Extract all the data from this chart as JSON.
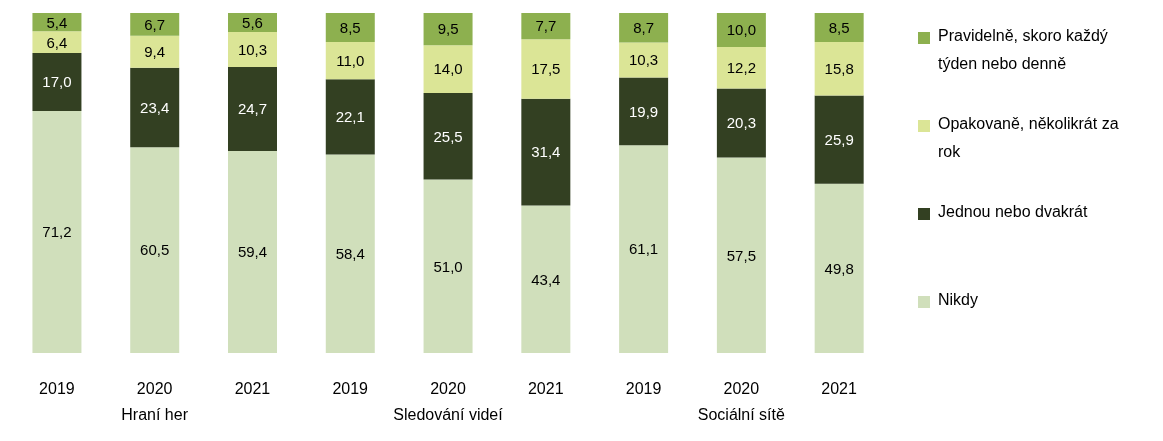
{
  "chart_data": {
    "type": "bar",
    "stacked": true,
    "legend": "right",
    "categories": [
      "2019",
      "2020",
      "2021",
      "2019",
      "2020",
      "2021",
      "2019",
      "2020",
      "2021"
    ],
    "annotations": [
      "Hraní her",
      "Sledování videí",
      "Sociální sítě"
    ],
    "series": [
      {
        "name": "Nikdy",
        "color": "#d0dfbb",
        "values": [
          71.2,
          60.5,
          59.4,
          58.4,
          51.0,
          43.4,
          61.1,
          57.5,
          49.8
        ],
        "value_labels": [
          "71,2",
          "60,5",
          "59,4",
          "58,4",
          "51,0",
          "43,4",
          "61,1",
          "57,5",
          "49,8"
        ]
      },
      {
        "name": "Jednou nebo dvakrát",
        "color": "#334022",
        "values": [
          17.0,
          23.4,
          24.7,
          22.1,
          25.5,
          31.4,
          19.9,
          20.3,
          25.9
        ],
        "value_labels": [
          "17,0",
          "23,4",
          "24,7",
          "22,1",
          "25,5",
          "31,4",
          "19,9",
          "20,3",
          "25,9"
        ]
      },
      {
        "name": "Opakovaně, několikrát za rok",
        "color": "#dbe596",
        "values": [
          6.4,
          9.4,
          10.3,
          11.0,
          14.0,
          17.5,
          10.3,
          12.2,
          15.8
        ],
        "value_labels": [
          "6,4",
          "9,4",
          "10,3",
          "11,0",
          "14,0",
          "17,5",
          "10,3",
          "12,2",
          "15,8"
        ]
      },
      {
        "name": "Pravidelně, skoro každý týden nebo denně",
        "color": "#8db04f",
        "values": [
          5.4,
          6.7,
          5.6,
          8.5,
          9.5,
          7.7,
          8.7,
          10.0,
          8.5
        ],
        "value_labels": [
          "5,4",
          "6,7",
          "5,6",
          "8,5",
          "9,5",
          "7,7",
          "8,7",
          "10,0",
          "8,5"
        ]
      }
    ]
  }
}
